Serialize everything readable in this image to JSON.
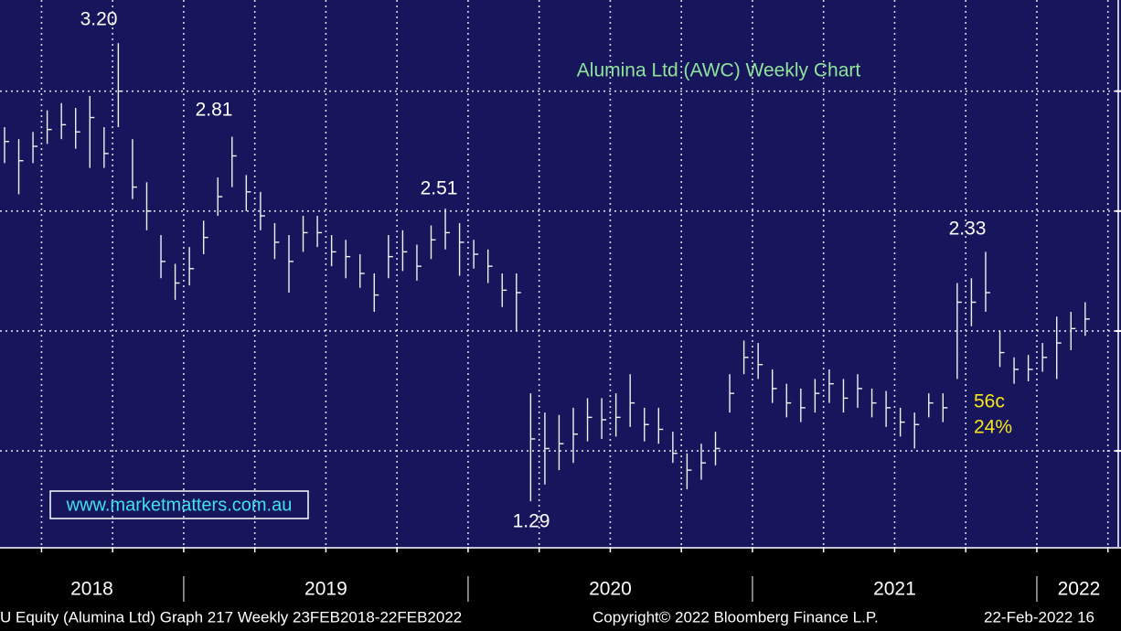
{
  "chart_data": {
    "type": "ohlc",
    "title": "Alumina Ltd (AWC) Weekly Chart",
    "website": "www.marketmatters.com.au",
    "annotations": [
      "3.20",
      "2.81",
      "2.51",
      "1.29",
      "2.33",
      "56c",
      "24%"
    ],
    "footer": [
      "U Equity (Alumina Ltd) Graph 217  Weekly 23FEB2018-22FEB2022",
      "Copyright© 2022 Bloomberg Finance L.P.",
      "22-Feb-2022 16"
    ],
    "x": [
      2018.37,
      2018.42,
      2018.47,
      2018.52,
      2018.57,
      2018.62,
      2018.67,
      2018.72,
      2018.77,
      2018.82,
      2018.87,
      2018.92,
      2018.97,
      2019.02,
      2019.07,
      2019.12,
      2019.17,
      2019.22,
      2019.27,
      2019.32,
      2019.37,
      2019.42,
      2019.47,
      2019.52,
      2019.57,
      2019.62,
      2019.67,
      2019.72,
      2019.77,
      2019.82,
      2019.87,
      2019.92,
      2019.97,
      2020.02,
      2020.07,
      2020.12,
      2020.17,
      2020.22,
      2020.27,
      2020.32,
      2020.37,
      2020.42,
      2020.47,
      2020.52,
      2020.57,
      2020.62,
      2020.67,
      2020.72,
      2020.77,
      2020.82,
      2020.87,
      2020.92,
      2020.97,
      2021.02,
      2021.07,
      2021.12,
      2021.17,
      2021.22,
      2021.27,
      2021.32,
      2021.37,
      2021.42,
      2021.47,
      2021.52,
      2021.57,
      2021.62,
      2021.67,
      2021.72,
      2021.77,
      2021.82,
      2021.87,
      2021.92,
      2021.97,
      2022.02,
      2022.07,
      2022.12,
      2022.17
    ],
    "high": [
      2.85,
      2.8,
      2.83,
      2.92,
      2.95,
      2.93,
      2.98,
      2.85,
      3.2,
      2.8,
      2.62,
      2.4,
      2.28,
      2.35,
      2.46,
      2.64,
      2.81,
      2.65,
      2.58,
      2.45,
      2.4,
      2.48,
      2.48,
      2.4,
      2.38,
      2.32,
      2.24,
      2.4,
      2.42,
      2.36,
      2.44,
      2.51,
      2.45,
      2.38,
      2.34,
      2.24,
      2.24,
      1.74,
      1.66,
      1.65,
      1.68,
      1.72,
      1.72,
      1.74,
      1.82,
      1.68,
      1.68,
      1.58,
      1.49,
      1.53,
      1.58,
      1.82,
      1.96,
      1.95,
      1.84,
      1.78,
      1.76,
      1.8,
      1.84,
      1.8,
      1.82,
      1.76,
      1.75,
      1.68,
      1.66,
      1.74,
      1.74,
      2.2,
      2.22,
      2.33,
      2.0,
      1.89,
      1.9,
      1.95,
      2.06,
      2.08,
      2.12
    ],
    "low": [
      2.7,
      2.57,
      2.7,
      2.78,
      2.8,
      2.76,
      2.68,
      2.68,
      2.85,
      2.55,
      2.42,
      2.22,
      2.13,
      2.19,
      2.32,
      2.48,
      2.6,
      2.5,
      2.42,
      2.3,
      2.16,
      2.33,
      2.35,
      2.27,
      2.22,
      2.18,
      2.08,
      2.22,
      2.25,
      2.21,
      2.3,
      2.34,
      2.23,
      2.26,
      2.2,
      2.1,
      2.0,
      1.29,
      1.36,
      1.42,
      1.45,
      1.54,
      1.55,
      1.56,
      1.6,
      1.54,
      1.53,
      1.45,
      1.34,
      1.38,
      1.44,
      1.66,
      1.82,
      1.8,
      1.7,
      1.64,
      1.62,
      1.66,
      1.7,
      1.66,
      1.68,
      1.64,
      1.6,
      1.56,
      1.51,
      1.64,
      1.62,
      1.8,
      2.02,
      2.08,
      1.85,
      1.78,
      1.79,
      1.83,
      1.8,
      1.92,
      1.98
    ],
    "close": [
      2.79,
      2.71,
      2.77,
      2.84,
      2.86,
      2.83,
      2.89,
      2.74,
      3.0,
      2.6,
      2.5,
      2.29,
      2.2,
      2.26,
      2.39,
      2.56,
      2.73,
      2.58,
      2.48,
      2.37,
      2.29,
      2.41,
      2.41,
      2.33,
      2.31,
      2.24,
      2.15,
      2.31,
      2.33,
      2.27,
      2.38,
      2.41,
      2.37,
      2.32,
      2.27,
      2.17,
      2.16,
      1.55,
      1.51,
      1.53,
      1.57,
      1.64,
      1.63,
      1.64,
      1.7,
      1.61,
      1.59,
      1.49,
      1.42,
      1.45,
      1.51,
      1.74,
      1.89,
      1.86,
      1.76,
      1.7,
      1.68,
      1.74,
      1.78,
      1.72,
      1.76,
      1.7,
      1.68,
      1.62,
      1.61,
      1.7,
      1.68,
      2.12,
      2.12,
      2.16,
      1.91,
      1.84,
      1.84,
      1.89,
      1.95,
      2.01,
      2.05
    ],
    "color": "#f2f2f2",
    "xlim": [
      2018.354,
      2022.296
    ],
    "xticks": [
      2019,
      2020,
      2021,
      2022
    ],
    "year_labels": [
      "2018",
      "2019",
      "2020",
      "2021",
      "2022"
    ],
    "xgrid_step": 0.25,
    "ylim": [
      1.1,
      3.38
    ],
    "yticks": [
      1.5,
      2,
      2.5,
      3
    ],
    "grid": true
  }
}
